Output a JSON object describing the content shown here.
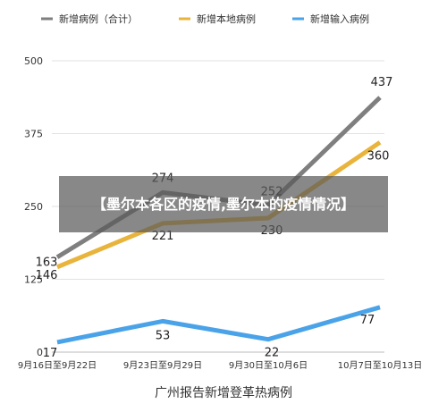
{
  "banner": {
    "text": "【墨尔本各区的疫情,墨尔本的疫情情况】"
  },
  "chart_data": {
    "type": "line",
    "title": "",
    "xlabel": "广州报告新增登革热病例",
    "ylabel": "",
    "categories": [
      "9月16日至9月22日",
      "9月23日至9月29日",
      "9月30日至10月6日",
      "10月7日至10月13日"
    ],
    "ylim": [
      0,
      500
    ],
    "yticks": [
      "0",
      "125",
      "250",
      "375",
      "500"
    ],
    "grid": true,
    "legend": "top",
    "series": [
      {
        "name": "新增病例（合计）",
        "color": "#7f7f7f",
        "values": [
          163,
          274,
          252,
          437
        ],
        "labels": [
          "163",
          "274",
          "252",
          "437"
        ]
      },
      {
        "name": "新增本地病例",
        "color": "#e8b43c",
        "values": [
          146,
          221,
          230,
          360
        ],
        "labels": [
          "146",
          "221",
          "230",
          "360"
        ]
      },
      {
        "name": "新增输入病例",
        "color": "#4aa3e8",
        "values": [
          17,
          53,
          22,
          77
        ],
        "labels": [
          "17",
          "53",
          "22",
          "77"
        ]
      }
    ]
  }
}
